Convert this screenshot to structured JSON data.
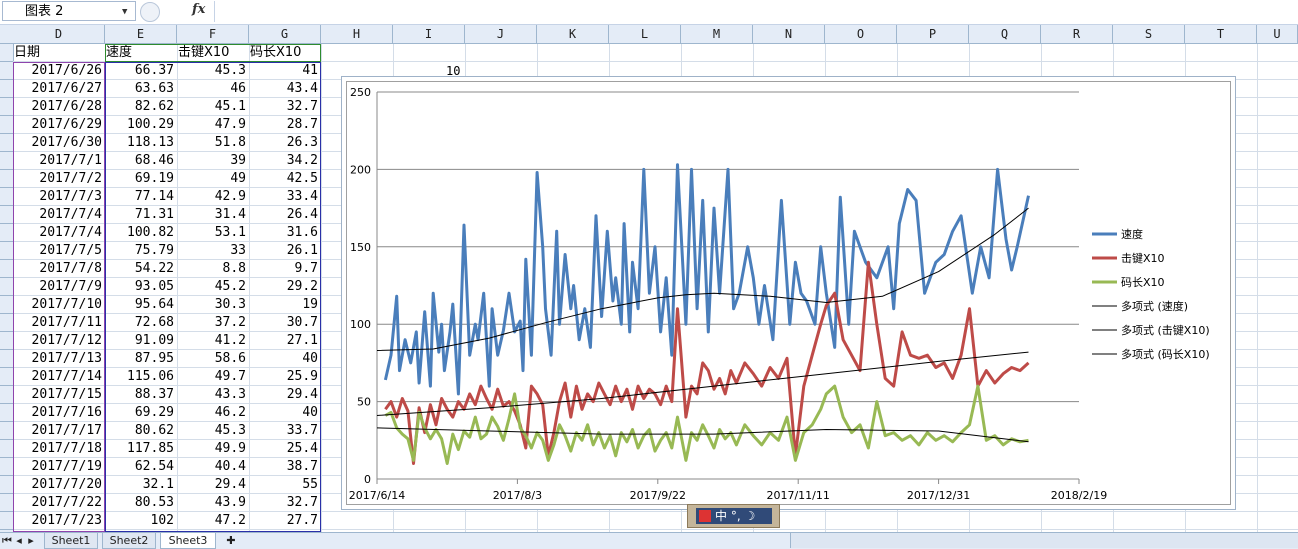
{
  "name_box": "图表 2",
  "fx_label": "fx",
  "columns": [
    "D",
    "E",
    "F",
    "G",
    "H",
    "I",
    "J",
    "K",
    "L",
    "M",
    "N",
    "O",
    "P",
    "Q",
    "R",
    "S",
    "T",
    "U"
  ],
  "headers": [
    "日期",
    "速度",
    "击键X10",
    "码长X10"
  ],
  "rows": [
    [
      "2017/6/26",
      "66.37",
      "45.3",
      "41"
    ],
    [
      "2017/6/27",
      "63.63",
      "46",
      "43.4"
    ],
    [
      "2017/6/28",
      "82.62",
      "45.1",
      "32.7"
    ],
    [
      "2017/6/29",
      "100.29",
      "47.9",
      "28.7"
    ],
    [
      "2017/6/30",
      "118.13",
      "51.8",
      "26.3"
    ],
    [
      "2017/7/1",
      "68.46",
      "39",
      "34.2"
    ],
    [
      "2017/7/2",
      "69.19",
      "49",
      "42.5"
    ],
    [
      "2017/7/3",
      "77.14",
      "42.9",
      "33.4"
    ],
    [
      "2017/7/4",
      "71.31",
      "31.4",
      "26.4"
    ],
    [
      "2017/7/4",
      "100.82",
      "53.1",
      "31.6"
    ],
    [
      "2017/7/5",
      "75.79",
      "33",
      "26.1"
    ],
    [
      "2017/7/8",
      "54.22",
      "8.8",
      "9.7"
    ],
    [
      "2017/7/9",
      "93.05",
      "45.2",
      "29.2"
    ],
    [
      "2017/7/10",
      "95.64",
      "30.3",
      "19"
    ],
    [
      "2017/7/11",
      "72.68",
      "37.2",
      "30.7"
    ],
    [
      "2017/7/12",
      "91.09",
      "41.2",
      "27.1"
    ],
    [
      "2017/7/13",
      "87.95",
      "58.6",
      "40"
    ],
    [
      "2017/7/14",
      "115.06",
      "49.7",
      "25.9"
    ],
    [
      "2017/7/15",
      "88.37",
      "43.3",
      "29.4"
    ],
    [
      "2017/7/16",
      "69.29",
      "46.2",
      "40"
    ],
    [
      "2017/7/17",
      "80.62",
      "45.3",
      "33.7"
    ],
    [
      "2017/7/18",
      "117.85",
      "49.9",
      "25.4"
    ],
    [
      "2017/7/19",
      "62.54",
      "40.4",
      "38.7"
    ],
    [
      "2017/7/20",
      "32.1",
      "29.4",
      "55"
    ],
    [
      "2017/7/22",
      "80.53",
      "43.9",
      "32.7"
    ],
    [
      "2017/7/23",
      "102",
      "47.2",
      "27.7"
    ]
  ],
  "stray_cell": "10",
  "sheet_tabs": [
    "Sheet1",
    "Sheet2",
    "Sheet3"
  ],
  "active_tab": "Sheet3",
  "ime_text": "中 °, ☽",
  "chart_data": {
    "type": "line",
    "ylim": [
      0,
      250
    ],
    "yticks": [
      "0",
      "50",
      "100",
      "150",
      "200",
      "250"
    ],
    "xticks": [
      "2017/6/14",
      "2017/8/3",
      "2017/9/22",
      "2017/11/11",
      "2017/12/31",
      "2018/2/19"
    ],
    "x_range_days": [
      0,
      250
    ],
    "legend_position": "right",
    "grid": true,
    "series": [
      {
        "name": "速度",
        "color": "#4a7ebb",
        "width": 3,
        "x": [
          3,
          5,
          7,
          8,
          10,
          12,
          14,
          15,
          17,
          19,
          20,
          22,
          23,
          24,
          26,
          27,
          29,
          31,
          33,
          35,
          36,
          38,
          40,
          41,
          43,
          45,
          47,
          49,
          51,
          52,
          53,
          55,
          57,
          59,
          60,
          62,
          64,
          65,
          67,
          69,
          70,
          72,
          74,
          76,
          78,
          80,
          82,
          84,
          85,
          87,
          88,
          90,
          91,
          93,
          95,
          97,
          99,
          101,
          103,
          105,
          107,
          110,
          112,
          114,
          116,
          118,
          120,
          122,
          125,
          127,
          129,
          132,
          134,
          136,
          138,
          141,
          144,
          147,
          149,
          151,
          153,
          156,
          158,
          160,
          163,
          165,
          168,
          170,
          174,
          178,
          182,
          184,
          186,
          189,
          192,
          195,
          199,
          202,
          205,
          208,
          212,
          215,
          218,
          221,
          224,
          226,
          228,
          232
        ],
        "y": [
          64,
          80,
          118,
          70,
          90,
          75,
          95,
          62,
          108,
          60,
          120,
          82,
          100,
          70,
          95,
          113,
          55,
          164,
          80,
          100,
          90,
          120,
          60,
          110,
          80,
          96,
          120,
          95,
          102,
          70,
          142,
          80,
          198,
          150,
          110,
          80,
          160,
          100,
          145,
          110,
          125,
          90,
          110,
          85,
          170,
          105,
          160,
          115,
          130,
          100,
          165,
          95,
          140,
          110,
          200,
          120,
          150,
          95,
          130,
          80,
          203,
          100,
          200,
          110,
          180,
          95,
          175,
          120,
          200,
          110,
          120,
          150,
          130,
          100,
          125,
          90,
          180,
          100,
          140,
          120,
          115,
          100,
          150,
          120,
          85,
          182,
          100,
          160,
          140,
          130,
          150,
          110,
          165,
          187,
          180,
          120,
          140,
          145,
          160,
          170,
          120,
          150,
          130,
          200,
          155,
          135,
          150,
          183
        ]
      },
      {
        "name": "击键X10",
        "color": "#be4b48",
        "width": 3,
        "x": [
          3,
          5,
          7,
          9,
          11,
          13,
          15,
          17,
          19,
          21,
          23,
          25,
          27,
          29,
          31,
          33,
          35,
          37,
          39,
          41,
          43,
          45,
          47,
          49,
          51,
          53,
          55,
          57,
          59,
          61,
          63,
          65,
          67,
          69,
          71,
          73,
          75,
          77,
          79,
          81,
          83,
          85,
          87,
          89,
          91,
          93,
          95,
          97,
          99,
          101,
          103,
          105,
          107,
          110,
          112,
          114,
          116,
          118,
          120,
          122,
          124,
          126,
          128,
          131,
          134,
          137,
          140,
          143,
          146,
          149,
          152,
          155,
          158,
          160,
          163,
          166,
          169,
          172,
          175,
          178,
          181,
          184,
          187,
          190,
          193,
          196,
          199,
          202,
          205,
          208,
          211,
          214,
          217,
          220,
          223,
          226,
          229,
          232
        ],
        "y": [
          45,
          50,
          40,
          52,
          44,
          10,
          46,
          30,
          48,
          35,
          52,
          45,
          40,
          50,
          45,
          55,
          48,
          60,
          52,
          45,
          58,
          47,
          50,
          44,
          35,
          20,
          60,
          55,
          48,
          15,
          30,
          50,
          62,
          40,
          60,
          45,
          55,
          50,
          62,
          55,
          48,
          60,
          50,
          58,
          45,
          60,
          52,
          58,
          55,
          48,
          60,
          50,
          110,
          40,
          60,
          55,
          75,
          70,
          58,
          65,
          55,
          70,
          62,
          75,
          68,
          60,
          72,
          65,
          78,
          15,
          60,
          80,
          100,
          112,
          120,
          90,
          80,
          70,
          140,
          100,
          65,
          60,
          95,
          80,
          78,
          80,
          72,
          75,
          65,
          80,
          110,
          60,
          70,
          62,
          68,
          72,
          70,
          75
        ]
      },
      {
        "name": "码长X10",
        "color": "#98b954",
        "width": 3,
        "x": [
          3,
          5,
          7,
          9,
          11,
          13,
          15,
          17,
          19,
          21,
          23,
          25,
          27,
          29,
          31,
          33,
          35,
          37,
          39,
          41,
          43,
          45,
          47,
          49,
          51,
          53,
          55,
          57,
          59,
          61,
          63,
          65,
          67,
          69,
          71,
          73,
          75,
          77,
          79,
          81,
          83,
          85,
          87,
          89,
          91,
          93,
          95,
          97,
          99,
          101,
          103,
          105,
          107,
          110,
          112,
          114,
          116,
          118,
          120,
          122,
          124,
          126,
          128,
          131,
          134,
          137,
          140,
          143,
          146,
          149,
          152,
          155,
          158,
          160,
          163,
          166,
          169,
          172,
          175,
          178,
          181,
          184,
          187,
          190,
          193,
          196,
          199,
          202,
          205,
          208,
          211,
          214,
          217,
          220,
          223,
          226,
          229,
          232
        ],
        "y": [
          41,
          43,
          33,
          29,
          26,
          12,
          43,
          33,
          26,
          32,
          26,
          10,
          29,
          19,
          31,
          27,
          40,
          26,
          29,
          40,
          34,
          25,
          39,
          55,
          33,
          28,
          20,
          30,
          25,
          12,
          22,
          35,
          28,
          18,
          30,
          25,
          35,
          22,
          30,
          20,
          28,
          15,
          30,
          24,
          32,
          20,
          28,
          32,
          18,
          25,
          30,
          20,
          40,
          12,
          30,
          25,
          35,
          28,
          20,
          32,
          26,
          30,
          22,
          35,
          28,
          22,
          30,
          25,
          40,
          12,
          30,
          35,
          45,
          55,
          60,
          40,
          30,
          35,
          20,
          50,
          28,
          30,
          25,
          28,
          22,
          30,
          25,
          28,
          24,
          30,
          35,
          60,
          25,
          28,
          22,
          26,
          24,
          25
        ]
      },
      {
        "name": "多项式 (速度)",
        "color": "#000000",
        "width": 1,
        "x": [
          0,
          20,
          40,
          60,
          80,
          100,
          110,
          120,
          140,
          160,
          180,
          200,
          220,
          232
        ],
        "y": [
          83,
          84,
          91,
          101,
          110,
          117,
          119,
          120,
          118,
          114,
          118,
          134,
          158,
          175
        ]
      },
      {
        "name": "多项式 (击键X10)",
        "color": "#000000",
        "width": 1,
        "x": [
          0,
          40,
          80,
          120,
          160,
          200,
          232
        ],
        "y": [
          41,
          46,
          52,
          60,
          68,
          76,
          82
        ]
      },
      {
        "name": "多项式 (码长X10)",
        "color": "#000000",
        "width": 1,
        "x": [
          0,
          40,
          80,
          120,
          160,
          200,
          232
        ],
        "y": [
          33,
          31,
          29,
          29,
          32,
          31,
          24
        ]
      }
    ]
  }
}
